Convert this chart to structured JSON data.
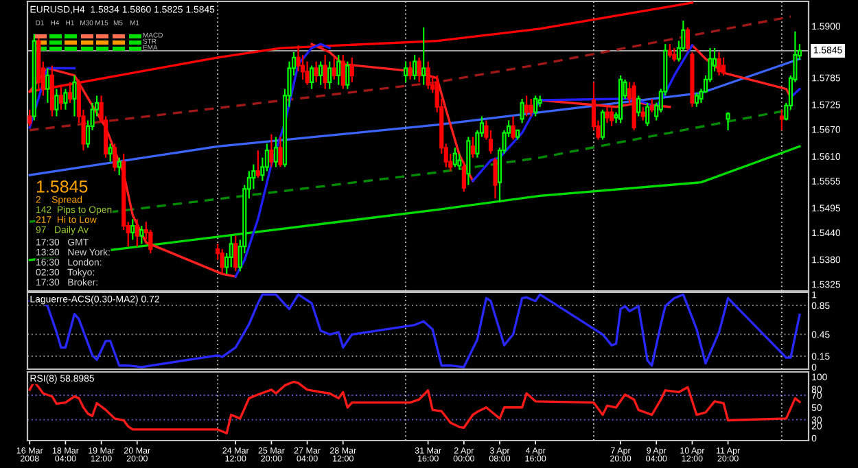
{
  "chart_data": [
    {
      "type": "candlestick",
      "title": "EURUSD,H4  1.5834 1.5860 1.5825 1.5845",
      "x": [
        "2008-03-16T20:00",
        "2008-03-17T00:00",
        "2008-03-17T04:00",
        "2008-03-17T08:00",
        "2008-03-17T12:00",
        "2008-03-17T16:00",
        "2008-03-17T20:00",
        "2008-03-18T00:00",
        "2008-03-18T04:00",
        "2008-03-18T08:00",
        "2008-03-18T12:00",
        "2008-03-18T16:00",
        "2008-03-18T20:00",
        "2008-03-19T00:00",
        "2008-03-19T04:00",
        "2008-03-19T08:00",
        "2008-03-19T12:00",
        "2008-03-19T16:00",
        "2008-03-19T20:00",
        "2008-03-20T00:00",
        "2008-03-20T04:00",
        "2008-03-20T08:00",
        "2008-03-20T12:00",
        "2008-03-20T16:00",
        "2008-03-20T20:00",
        "2008-03-21T00:00",
        "2008-03-21T04:00",
        "2008-03-21T08:00",
        "2008-03-23T20:00",
        "2008-03-24T00:00",
        "2008-03-24T04:00",
        "2008-03-24T08:00",
        "2008-03-24T12:00",
        "2008-03-24T16:00",
        "2008-03-24T20:00",
        "2008-03-25T00:00",
        "2008-03-25T04:00",
        "2008-03-25T08:00",
        "2008-03-25T12:00",
        "2008-03-25T16:00",
        "2008-03-25T20:00",
        "2008-03-26T00:00",
        "2008-03-26T04:00",
        "2008-03-26T08:00",
        "2008-03-26T12:00",
        "2008-03-26T16:00",
        "2008-03-26T20:00",
        "2008-03-27T00:00",
        "2008-03-27T04:00",
        "2008-03-27T08:00",
        "2008-03-27T12:00",
        "2008-03-27T16:00",
        "2008-03-27T20:00",
        "2008-03-28T00:00",
        "2008-03-28T04:00",
        "2008-03-28T08:00",
        "2008-03-28T12:00",
        "2008-03-28T16:00",
        "2008-03-28T20:00",
        "2008-03-30T20:00",
        "2008-03-31T00:00",
        "2008-03-31T04:00",
        "2008-03-31T08:00",
        "2008-03-31T12:00",
        "2008-03-31T16:00",
        "2008-03-31T20:00",
        "2008-04-01T00:00",
        "2008-04-01T04:00",
        "2008-04-01T08:00",
        "2008-04-01T12:00",
        "2008-04-01T16:00",
        "2008-04-01T20:00",
        "2008-04-02T00:00",
        "2008-04-02T04:00",
        "2008-04-02T08:00",
        "2008-04-02T12:00",
        "2008-04-02T16:00",
        "2008-04-02T20:00",
        "2008-04-03T00:00",
        "2008-04-03T04:00",
        "2008-04-03T08:00",
        "2008-04-03T12:00",
        "2008-04-03T16:00",
        "2008-04-03T20:00",
        "2008-04-04T00:00",
        "2008-04-04T04:00",
        "2008-04-04T08:00",
        "2008-04-04T12:00",
        "2008-04-04T16:00",
        "2008-04-04T20:00",
        "2008-04-06T20:00",
        "2008-04-07T00:00",
        "2008-04-07T04:00",
        "2008-04-07T08:00",
        "2008-04-07T12:00",
        "2008-04-07T16:00",
        "2008-04-07T20:00",
        "2008-04-08T00:00",
        "2008-04-08T04:00",
        "2008-04-08T08:00",
        "2008-04-08T12:00",
        "2008-04-08T16:00",
        "2008-04-08T20:00",
        "2008-04-09T00:00",
        "2008-04-09T04:00",
        "2008-04-09T08:00",
        "2008-04-09T12:00",
        "2008-04-09T16:00",
        "2008-04-09T20:00",
        "2008-04-10T00:00",
        "2008-04-10T04:00",
        "2008-04-10T08:00",
        "2008-04-10T12:00",
        "2008-04-10T16:00",
        "2008-04-10T20:00",
        "2008-04-11T00:00",
        "2008-04-11T04:00",
        "2008-04-11T08:00",
        "2008-04-11T12:00",
        "2008-04-11T16:00",
        "2008-04-11T20:00",
        "2008-04-13T20:00",
        "2008-04-14T00:00",
        "2008-04-14T04:00",
        "2008-04-14T08:00",
        "2008-04-14T12:00"
      ],
      "ohlc": [
        [
          1.5699,
          1.5714,
          1.5677,
          1.5684
        ],
        [
          1.5699,
          1.5882,
          1.569,
          1.5867
        ],
        [
          1.5867,
          1.5873,
          1.576,
          1.5775
        ],
        [
          1.5806,
          1.5821,
          1.5745,
          1.576
        ],
        [
          1.576,
          1.5806,
          1.5729,
          1.579
        ],
        [
          1.579,
          1.5812,
          1.5699,
          1.5714
        ],
        [
          1.5714,
          1.576,
          1.5699,
          1.5745
        ],
        [
          1.5745,
          1.5769,
          1.5714,
          1.5729
        ],
        [
          1.5729,
          1.576,
          1.5714,
          1.5751
        ],
        [
          1.5751,
          1.5775,
          1.5729,
          1.5738
        ],
        [
          1.5738,
          1.579,
          1.5699,
          1.5775
        ],
        [
          1.5775,
          1.5781,
          1.5684,
          1.5699
        ],
        [
          1.5699,
          1.5714,
          1.5623,
          1.5638
        ],
        [
          1.5638,
          1.569,
          1.5629,
          1.5677
        ],
        [
          1.5677,
          1.5729,
          1.5668,
          1.5714
        ],
        [
          1.5714,
          1.5745,
          1.5699,
          1.5729
        ],
        [
          1.5729,
          1.5745,
          1.5684,
          1.569
        ],
        [
          1.569,
          1.5699,
          1.5607,
          1.5616
        ],
        [
          1.5616,
          1.5638,
          1.5598,
          1.5629
        ],
        [
          1.5629,
          1.5638,
          1.5577,
          1.5586
        ],
        [
          1.5586,
          1.5607,
          1.5568,
          1.5598
        ],
        [
          1.5598,
          1.5616,
          1.5446,
          1.5455
        ],
        [
          1.5455,
          1.5464,
          1.5409,
          1.544
        ],
        [
          1.544,
          1.547,
          1.5424,
          1.5455
        ],
        [
          1.5455,
          1.547,
          1.5409,
          1.5433
        ],
        [
          1.5433,
          1.5455,
          1.5415,
          1.5446
        ],
        [
          1.5446,
          1.5464,
          1.5424,
          1.544
        ],
        [
          1.544,
          1.5446,
          1.5394,
          1.5403
        ],
        [
          1.5403,
          1.5415,
          1.5379,
          1.5394
        ],
        [
          1.5394,
          1.5403,
          1.5348,
          1.5363
        ],
        [
          1.5363,
          1.5394,
          1.5348,
          1.5385
        ],
        [
          1.5385,
          1.5433,
          1.5363,
          1.5415
        ],
        [
          1.5415,
          1.5433,
          1.5354,
          1.5363
        ],
        [
          1.5363,
          1.5424,
          1.5354,
          1.5409
        ],
        [
          1.5409,
          1.5546,
          1.5394,
          1.5537
        ],
        [
          1.5537,
          1.5577,
          1.5516,
          1.5562
        ],
        [
          1.5562,
          1.5592,
          1.5537,
          1.5577
        ],
        [
          1.5577,
          1.5623,
          1.5562,
          1.5568
        ],
        [
          1.5568,
          1.5607,
          1.5555,
          1.5586
        ],
        [
          1.5586,
          1.5638,
          1.5577,
          1.5623
        ],
        [
          1.5623,
          1.5659,
          1.5586,
          1.5598
        ],
        [
          1.5598,
          1.5653,
          1.5586,
          1.5629
        ],
        [
          1.5629,
          1.5653,
          1.5586,
          1.5592
        ],
        [
          1.5592,
          1.576,
          1.5586,
          1.5745
        ],
        [
          1.5745,
          1.5821,
          1.572,
          1.5806
        ],
        [
          1.5806,
          1.5842,
          1.579,
          1.583
        ],
        [
          1.583,
          1.5857,
          1.5799,
          1.5812
        ],
        [
          1.5812,
          1.5836,
          1.5781,
          1.5799
        ],
        [
          1.5799,
          1.5821,
          1.5769,
          1.5775
        ],
        [
          1.5775,
          1.5812,
          1.576,
          1.5806
        ],
        [
          1.5806,
          1.5821,
          1.5775,
          1.579
        ],
        [
          1.579,
          1.5821,
          1.5769,
          1.5812
        ],
        [
          1.5812,
          1.5836,
          1.576,
          1.5775
        ],
        [
          1.5775,
          1.5821,
          1.576,
          1.5806
        ],
        [
          1.5806,
          1.583,
          1.5781,
          1.579
        ],
        [
          1.579,
          1.5836,
          1.5769,
          1.5821
        ],
        [
          1.5821,
          1.5836,
          1.576,
          1.5769
        ],
        [
          1.5769,
          1.5821,
          1.576,
          1.5812
        ],
        [
          1.5812,
          1.583,
          1.5775,
          1.579
        ],
        [
          1.579,
          1.5821,
          1.5775,
          1.5806
        ],
        [
          1.5806,
          1.5821,
          1.5781,
          1.579
        ],
        [
          1.579,
          1.5836,
          1.5781,
          1.5821
        ],
        [
          1.5821,
          1.583,
          1.5775,
          1.579
        ],
        [
          1.579,
          1.5897,
          1.5769,
          1.5806
        ],
        [
          1.5806,
          1.5821,
          1.576,
          1.5769
        ],
        [
          1.5769,
          1.579,
          1.5751,
          1.576
        ],
        [
          1.5775,
          1.579,
          1.5708,
          1.572
        ],
        [
          1.572,
          1.5738,
          1.5616,
          1.5629
        ],
        [
          1.5629,
          1.5638,
          1.5586,
          1.5598
        ],
        [
          1.5598,
          1.5616,
          1.5577,
          1.5586
        ],
        [
          1.5592,
          1.5629,
          1.5586,
          1.5616
        ],
        [
          1.5589,
          1.5616,
          1.558,
          1.5601
        ],
        [
          1.5586,
          1.5598,
          1.5531,
          1.554
        ],
        [
          1.5571,
          1.5653,
          1.5546,
          1.5644
        ],
        [
          1.5632,
          1.5653,
          1.5607,
          1.5616
        ],
        [
          1.5616,
          1.5668,
          1.5607,
          1.5662
        ],
        [
          1.5662,
          1.5699,
          1.5653,
          1.5684
        ],
        [
          1.5677,
          1.569,
          1.5647,
          1.5653
        ],
        [
          1.5647,
          1.5668,
          1.5616,
          1.5623
        ],
        [
          1.5601,
          1.5607,
          1.5516,
          1.5546
        ],
        [
          1.5552,
          1.5629,
          1.5507,
          1.5623
        ],
        [
          1.5623,
          1.5668,
          1.5616,
          1.5662
        ],
        [
          1.5662,
          1.569,
          1.5653,
          1.5677
        ],
        [
          1.5677,
          1.5699,
          1.5647,
          1.5653
        ],
        [
          1.5653,
          1.5668,
          1.5647,
          1.5668
        ],
        [
          1.5693,
          1.5738,
          1.5684,
          1.5729
        ],
        [
          1.5723,
          1.5745,
          1.5699,
          1.5708
        ],
        [
          1.5723,
          1.5738,
          1.5699,
          1.5708
        ],
        [
          1.5708,
          1.5745,
          1.5699,
          1.5738
        ],
        [
          1.5729,
          1.5745,
          1.572,
          1.5735
        ],
        [
          1.5735,
          1.5775,
          1.5668,
          1.5677
        ],
        [
          1.5677,
          1.569,
          1.5647,
          1.5653
        ],
        [
          1.5653,
          1.5714,
          1.5647,
          1.5708
        ],
        [
          1.5708,
          1.572,
          1.5684,
          1.5696
        ],
        [
          1.5708,
          1.572,
          1.5677,
          1.569
        ],
        [
          1.5696,
          1.5708,
          1.5684,
          1.5702
        ],
        [
          1.5693,
          1.579,
          1.5684,
          1.5781
        ],
        [
          1.5745,
          1.5781,
          1.5738,
          1.5775
        ],
        [
          1.576,
          1.5775,
          1.5729,
          1.5738
        ],
        [
          1.5766,
          1.5775,
          1.5668,
          1.5674
        ],
        [
          1.5708,
          1.5745,
          1.5699,
          1.5738
        ],
        [
          1.5708,
          1.572,
          1.569,
          1.5699
        ],
        [
          1.5684,
          1.5729,
          1.5677,
          1.572
        ],
        [
          1.5723,
          1.5738,
          1.5708,
          1.5714
        ],
        [
          1.5699,
          1.5729,
          1.569,
          1.5723
        ],
        [
          1.5714,
          1.576,
          1.5708,
          1.5754
        ],
        [
          1.5754,
          1.586,
          1.5745,
          1.5845
        ],
        [
          1.5845,
          1.586,
          1.583,
          1.5836
        ],
        [
          1.5836,
          1.5851,
          1.5821,
          1.5827
        ],
        [
          1.5827,
          1.5867,
          1.5821,
          1.5851
        ],
        [
          1.5851,
          1.5912,
          1.5845,
          1.5891
        ],
        [
          1.5891,
          1.5897,
          1.5845,
          1.5851
        ],
        [
          1.5836,
          1.5842,
          1.572,
          1.5729
        ],
        [
          1.5729,
          1.5751,
          1.572,
          1.5745
        ],
        [
          1.5738,
          1.576,
          1.5729,
          1.5754
        ],
        [
          1.5754,
          1.579,
          1.5751,
          1.5781
        ],
        [
          1.5781,
          1.5851,
          1.5775,
          1.5827
        ],
        [
          1.5812,
          1.5851,
          1.5799,
          1.5827
        ],
        [
          1.5827,
          1.5842,
          1.579,
          1.5799
        ],
        [
          1.5812,
          1.583,
          1.579,
          1.5796
        ],
        [
          1.5693,
          1.5708,
          1.5668,
          1.5705
        ],
        [
          1.5699,
          1.5714,
          1.5668,
          1.5693
        ],
        [
          1.5693,
          1.5729,
          1.569,
          1.5723
        ],
        [
          1.5723,
          1.579,
          1.5714,
          1.5784
        ],
        [
          1.5781,
          1.5888,
          1.5775,
          1.5836
        ],
        [
          1.5834,
          1.586,
          1.5825,
          1.5845
        ]
      ],
      "series": [
        {
          "type": "line",
          "color": "#ff0000",
          "line_style": "solid",
          "x": [
            "2008-03-16T20:00",
            "2008-03-23T20:00",
            "2008-03-26T04:00",
            "2008-04-01T00:00",
            "2008-04-04T20:00",
            "2008-04-10T12:00"
          ],
          "values": [
            1.5754,
            1.583,
            1.5851,
            1.5867,
            1.5894,
            1.5952
          ]
        },
        {
          "type": "line",
          "color": "#a01818",
          "line_style": "dashed",
          "x": [
            "2008-03-16T20:00",
            "2008-04-01T00:00",
            "2008-04-04T20:00",
            "2008-04-14T04:00"
          ],
          "values": [
            1.5668,
            1.5775,
            1.5815,
            1.5921
          ]
        },
        {
          "type": "line",
          "color": "#3c64ff",
          "line_style": "solid",
          "x": [
            "2008-03-16T20:00",
            "2008-03-23T20:00",
            "2008-04-01T00:00",
            "2008-04-04T20:00",
            "2008-04-10T20:00",
            "2008-04-14T12:00"
          ],
          "values": [
            1.5568,
            1.5632,
            1.568,
            1.5708,
            1.5751,
            1.5827
          ]
        },
        {
          "type": "line",
          "color": "#008c00",
          "line_style": "dashed",
          "x": [
            "2008-03-16T20:00",
            "2008-04-01T00:00",
            "2008-04-04T20:00",
            "2008-04-14T04:00"
          ],
          "values": [
            1.5464,
            1.5574,
            1.5607,
            1.5714
          ]
        },
        {
          "type": "line",
          "color": "#00dc00",
          "line_style": "solid",
          "x": [
            "2008-03-16T20:00",
            "2008-04-01T00:00",
            "2008-04-04T20:00",
            "2008-04-10T20:00",
            "2008-04-14T12:00"
          ],
          "values": [
            1.5379,
            1.5491,
            1.5522,
            1.5552,
            1.5632
          ]
        },
        {
          "type": "line",
          "color": "#ff2020",
          "line_style": "solid",
          "x": [
            "2008-03-16T20:00",
            "2008-03-17T12:00",
            "2008-03-18T12:00",
            "2008-03-19T04:00",
            "2008-03-19T16:00",
            "2008-03-20T08:00",
            "2008-03-20T16:00",
            "2008-03-21T04:00",
            "2008-03-24T00:00",
            "2008-03-24T12:00",
            null,
            "2008-03-27T08:00",
            "2008-03-28T00:00",
            "2008-03-28T12:00",
            "2008-03-31T04:00",
            "2008-04-01T00:00",
            "2008-04-01T08:00",
            "2008-04-01T20:00",
            "2008-04-02T08:00",
            null,
            "2008-04-04T20:00",
            "2008-04-07T16:00",
            "2008-04-08T12:00",
            "2008-04-09T04:00",
            "2008-04-09T16:00",
            null,
            "2008-04-10T12:00",
            "2008-04-11T00:00",
            "2008-04-11T16:00",
            "2008-04-14T00:00",
            "2008-04-14T04:00"
          ],
          "values": [
            1.5754,
            1.5806,
            1.579,
            1.5723,
            1.5674,
            1.5571,
            1.5479,
            1.5418,
            1.5348,
            1.5342,
            null,
            1.586,
            1.5842,
            1.5815,
            1.5799,
            1.5784,
            1.5714,
            1.5613,
            1.5555,
            null,
            1.5735,
            1.572,
            1.5729,
            1.5723,
            1.572,
            null,
            1.5857,
            1.5827,
            1.5796,
            1.576,
            1.5741
          ]
        },
        {
          "type": "line",
          "color": "#2020ff",
          "line_style": "solid",
          "x": [
            "2008-03-16T20:00",
            "2008-03-17T12:00",
            "2008-03-18T12:00",
            null,
            "2008-03-24T12:00",
            "2008-03-24T20:00",
            "2008-03-25T08:00",
            "2008-03-25T20:00",
            "2008-03-26T08:00",
            "2008-03-26T20:00",
            "2008-03-27T08:00",
            "2008-03-27T16:00",
            "2008-03-28T00:00",
            null,
            "2008-04-02T08:00",
            "2008-04-03T00:00",
            "2008-04-03T08:00",
            "2008-04-04T04:00",
            "2008-04-04T20:00",
            "2008-04-08T00:00",
            "2008-04-08T08:00",
            "2008-04-09T04:00",
            "2008-04-09T12:00",
            "2008-04-09T20:00",
            "2008-04-10T12:00",
            null,
            "2008-04-14T04:00",
            "2008-04-14T12:00"
          ],
          "values": [
            1.5674,
            1.5806,
            1.5806,
            null,
            1.5342,
            1.5379,
            1.547,
            1.5592,
            1.5684,
            1.5815,
            1.5851,
            1.586,
            1.5851,
            null,
            1.5555,
            1.5601,
            1.5607,
            1.5662,
            1.5735,
            1.5738,
            1.5738,
            1.572,
            1.5751,
            1.579,
            1.5857,
            null,
            1.5741,
            1.576
          ]
        }
      ],
      "xlim": [
        "2008-03-16T18:00",
        "2008-04-14T20:00"
      ],
      "ylim": [
        1.531,
        1.5955
      ],
      "yticks": [
        {
          "value": 1.59,
          "label": "1.5900"
        },
        1.5785,
        1.5725,
        {
          "value": 1.567,
          "label": "1.5670"
        },
        {
          "value": 1.561,
          "label": "1.5610"
        },
        1.5555,
        1.5495,
        {
          "value": 1.544,
          "label": "1.5440"
        },
        {
          "value": 1.538,
          "label": "1.5380"
        },
        1.5325
      ],
      "tick_labels": "y",
      "grid": false,
      "legend": false,
      "ref_lines": [
        {
          "axis": "y",
          "value": 1.5845,
          "label": "1.5845",
          "color": "#a0a0a0",
          "line_style": "solid"
        },
        {
          "axis": "x",
          "value": "2008-03-23T20:00",
          "color": "#c0c0c0",
          "line_style": "dotted"
        },
        {
          "axis": "x",
          "value": "2008-03-30T20:00",
          "color": "#c0c0c0",
          "line_style": "dotted"
        },
        {
          "axis": "x",
          "value": "2008-04-06T20:00",
          "color": "#c0c0c0",
          "line_style": "dotted"
        },
        {
          "axis": "x",
          "value": "2008-04-13T20:00",
          "color": "#c0c0c0",
          "line_style": "dotted"
        }
      ],
      "annotations": [
        "1.5845",
        "2    Spread",
        "142  Pips to Open",
        "217  Hi to Low",
        "97   Daily Av",
        "17:30   GMT",
        "13:30   New York:",
        "16:30   London:",
        "02:30   Tokyo:",
        "17:30   Broker:",
        "D1",
        "H4",
        "H1",
        "M30",
        "M15",
        "M5",
        "M1",
        "MACD",
        "STR",
        "EMA"
      ]
    },
    {
      "type": "line",
      "title": "Laguerre-ACS(0.30-MA2) 0.72",
      "series": [
        {
          "color": "#2828ff",
          "x": [
            "2008-03-16T20:00",
            "2008-03-17T00:00",
            "2008-03-17T12:00",
            "2008-03-17T20:00",
            "2008-03-18T00:00",
            "2008-03-18T04:00",
            "2008-03-18T12:00",
            "2008-03-18T16:00",
            "2008-03-19T04:00",
            "2008-03-19T08:00",
            "2008-03-19T16:00",
            "2008-03-19T20:00",
            "2008-03-20T04:00",
            "2008-03-20T12:00",
            "2008-03-21T00:00",
            "2008-03-23T20:00",
            "2008-03-24T00:00",
            "2008-03-24T12:00",
            "2008-03-25T00:00",
            "2008-03-25T08:00",
            "2008-03-25T12:00",
            "2008-03-26T00:00",
            "2008-03-26T12:00",
            "2008-03-26T20:00",
            "2008-03-27T08:00",
            "2008-03-27T16:00",
            "2008-03-28T00:00",
            "2008-03-28T08:00",
            "2008-03-28T12:00",
            "2008-03-28T20:00",
            "2008-03-31T04:00",
            "2008-03-31T12:00",
            "2008-03-31T20:00",
            "2008-04-01T04:00",
            "2008-04-01T12:00",
            "2008-04-02T00:00",
            "2008-04-02T12:00",
            "2008-04-02T20:00",
            "2008-04-03T00:00",
            "2008-04-03T12:00",
            "2008-04-03T20:00",
            "2008-04-04T04:00",
            "2008-04-04T08:00",
            "2008-04-04T16:00",
            "2008-04-04T20:00",
            "2008-04-07T04:00",
            "2008-04-07T12:00",
            "2008-04-07T16:00",
            "2008-04-07T20:00",
            "2008-04-08T00:00",
            "2008-04-08T04:00",
            "2008-04-08T12:00",
            "2008-04-08T20:00",
            "2008-04-09T00:00",
            "2008-04-09T08:00",
            "2008-04-09T12:00",
            "2008-04-09T20:00",
            "2008-04-10T04:00",
            "2008-04-10T16:00",
            "2008-04-11T00:00",
            "2008-04-11T12:00",
            "2008-04-11T20:00",
            "2008-04-14T00:00",
            "2008-04-14T04:00",
            "2008-04-14T12:00"
          ],
          "values": [
            0.91,
            0.98,
            0.84,
            0.48,
            0.27,
            0.27,
            0.73,
            0.66,
            0.16,
            0.1,
            0.36,
            0.36,
            0.02,
            0.02,
            0.0,
            0.16,
            0.14,
            0.27,
            0.59,
            0.88,
            1.0,
            1.0,
            0.8,
            1.0,
            0.88,
            0.5,
            0.45,
            0.48,
            0.27,
            0.45,
            0.58,
            0.63,
            0.52,
            0.02,
            0.02,
            0.0,
            0.38,
            0.95,
            0.91,
            0.3,
            0.45,
            0.95,
            0.96,
            0.91,
            1.0,
            0.45,
            0.3,
            0.32,
            0.8,
            0.84,
            0.77,
            0.84,
            0.09,
            0.02,
            0.59,
            0.84,
            0.95,
            1.0,
            0.52,
            0.05,
            0.48,
            0.95,
            0.13,
            0.13,
            0.72
          ]
        }
      ],
      "xlim": [
        "2008-03-16T18:00",
        "2008-04-14T20:00"
      ],
      "ylim": [
        -0.03,
        1.03
      ],
      "yticks": [
        0,
        0.15,
        0.45,
        0.85,
        1
      ],
      "tick_labels": "y",
      "grid": false,
      "legend": false,
      "ref_lines": [
        {
          "axis": "y",
          "value": 0.15,
          "color": "#808080",
          "line_style": "dotted"
        },
        {
          "axis": "y",
          "value": 0.45,
          "color": "#808080",
          "line_style": "dotted"
        },
        {
          "axis": "y",
          "value": 0.85,
          "color": "#808080",
          "line_style": "dotted"
        },
        {
          "axis": "x",
          "value": "2008-03-23T20:00",
          "color": "#c0c0c0",
          "line_style": "dotted"
        },
        {
          "axis": "x",
          "value": "2008-03-30T20:00",
          "color": "#c0c0c0",
          "line_style": "dotted"
        },
        {
          "axis": "x",
          "value": "2008-04-06T20:00",
          "color": "#c0c0c0",
          "line_style": "dotted"
        },
        {
          "axis": "x",
          "value": "2008-04-13T20:00",
          "color": "#c0c0c0",
          "line_style": "dotted"
        }
      ]
    },
    {
      "type": "line",
      "title": "RSI(8) 58.8985",
      "series": [
        {
          "color": "#ff1a1a",
          "x": [
            "2008-03-16T20:00",
            "2008-03-17T00:00",
            "2008-03-17T04:00",
            "2008-03-17T08:00",
            "2008-03-17T16:00",
            "2008-03-17T20:00",
            "2008-03-18T04:00",
            "2008-03-18T12:00",
            "2008-03-18T16:00",
            "2008-03-18T20:00",
            "2008-03-19T00:00",
            "2008-03-19T04:00",
            "2008-03-19T08:00",
            "2008-03-19T16:00",
            "2008-03-20T00:00",
            "2008-03-20T08:00",
            "2008-03-20T12:00",
            "2008-03-20T16:00",
            "2008-03-23T20:00",
            "2008-03-24T04:00",
            "2008-03-24T08:00",
            "2008-03-24T16:00",
            "2008-03-25T00:00",
            "2008-03-25T08:00",
            "2008-03-25T20:00",
            "2008-03-26T00:00",
            "2008-03-26T08:00",
            "2008-03-26T16:00",
            "2008-03-26T20:00",
            "2008-03-27T04:00",
            "2008-03-27T16:00",
            "2008-03-28T00:00",
            "2008-03-28T08:00",
            "2008-03-28T12:00",
            "2008-03-28T16:00",
            "2008-03-28T20:00",
            "2008-03-31T00:00",
            "2008-03-31T08:00",
            "2008-03-31T16:00",
            "2008-03-31T20:00",
            "2008-04-01T04:00",
            "2008-04-01T12:00",
            "2008-04-01T20:00",
            "2008-04-02T00:00",
            "2008-04-02T08:00",
            "2008-04-02T12:00",
            "2008-04-02T20:00",
            "2008-04-03T04:00",
            "2008-04-03T08:00",
            "2008-04-03T12:00",
            "2008-04-04T04:00",
            "2008-04-04T08:00",
            "2008-04-04T16:00",
            "2008-04-06T20:00",
            "2008-04-07T04:00",
            "2008-04-07T08:00",
            "2008-04-07T16:00",
            "2008-04-08T00:00",
            "2008-04-08T08:00",
            "2008-04-08T12:00",
            "2008-04-09T00:00",
            "2008-04-09T08:00",
            "2008-04-09T12:00",
            "2008-04-10T00:00",
            "2008-04-10T08:00",
            "2008-04-10T16:00",
            "2008-04-11T00:00",
            "2008-04-11T08:00",
            "2008-04-11T16:00",
            "2008-04-11T20:00",
            "2008-04-14T00:00",
            "2008-04-14T08:00",
            "2008-04-14T12:00"
          ],
          "values": [
            79,
            92,
            83,
            73,
            68,
            56,
            58,
            68,
            65,
            50,
            40,
            36,
            57,
            46,
            32,
            29,
            19,
            14,
            14,
            8,
            38,
            32,
            65,
            71,
            79,
            73,
            86,
            92,
            90,
            79,
            75,
            73,
            65,
            75,
            50,
            58,
            58,
            63,
            78,
            46,
            44,
            25,
            18,
            17,
            38,
            43,
            50,
            38,
            32,
            50,
            50,
            73,
            60,
            58,
            38,
            53,
            50,
            71,
            63,
            46,
            38,
            63,
            78,
            75,
            83,
            38,
            42,
            60,
            57,
            29,
            32,
            65,
            59
          ]
        }
      ],
      "xlim": [
        "2008-03-16T18:00",
        "2008-04-14T20:00"
      ],
      "ylim": [
        -4,
        108
      ],
      "yticks": [
        0,
        20,
        30,
        50,
        70,
        80,
        100
      ],
      "xticks": [
        {
          "value": "2008-03-16T20:00",
          "label": "16 Mar 2008"
        },
        {
          "value": "2008-03-18T04:00",
          "label": "18 Mar 04:00"
        },
        {
          "value": "2008-03-19T12:00",
          "label": "19 Mar 12:00"
        },
        {
          "value": "2008-03-20T20:00",
          "label": "20 Mar 20:00"
        },
        {
          "value": "2008-03-24T12:00",
          "label": "24 Mar 12:00"
        },
        {
          "value": "2008-03-25T20:00",
          "label": "25 Mar 20:00"
        },
        {
          "value": "2008-03-27T04:00",
          "label": "27 Mar 04:00"
        },
        {
          "value": "2008-03-28T12:00",
          "label": "28 Mar 12:00"
        },
        {
          "value": "2008-03-31T16:00",
          "label": "31 Mar 16:00"
        },
        {
          "value": "2008-04-02T00:00",
          "label": "2 Apr 00:00"
        },
        {
          "value": "2008-04-03T08:00",
          "label": "3 Apr 08:00"
        },
        {
          "value": "2008-04-04T16:00",
          "label": "4 Apr 16:00"
        },
        {
          "value": "2008-04-07T20:00",
          "label": "7 Apr 20:00"
        },
        {
          "value": "2008-04-09T04:00",
          "label": "9 Apr 04:00"
        },
        {
          "value": "2008-04-10T12:00",
          "label": "10 Apr 12:00"
        },
        {
          "value": "2008-04-11T20:00",
          "label": "11 Apr 20:00"
        }
      ],
      "grid": false,
      "legend": false,
      "ref_lines": [
        {
          "axis": "y",
          "value": 30,
          "color": "#6a5acd",
          "line_style": "dotted"
        },
        {
          "axis": "y",
          "value": 70,
          "color": "#6a5acd",
          "line_style": "dotted"
        },
        {
          "axis": "x",
          "value": "2008-03-23T20:00",
          "color": "#c0c0c0",
          "line_style": "dotted"
        },
        {
          "axis": "x",
          "value": "2008-03-30T20:00",
          "color": "#c0c0c0",
          "line_style": "dotted"
        },
        {
          "axis": "x",
          "value": "2008-04-06T20:00",
          "color": "#c0c0c0",
          "line_style": "dotted"
        },
        {
          "axis": "x",
          "value": "2008-04-13T20:00",
          "color": "#c0c0c0",
          "line_style": "dotted"
        }
      ]
    }
  ]
}
